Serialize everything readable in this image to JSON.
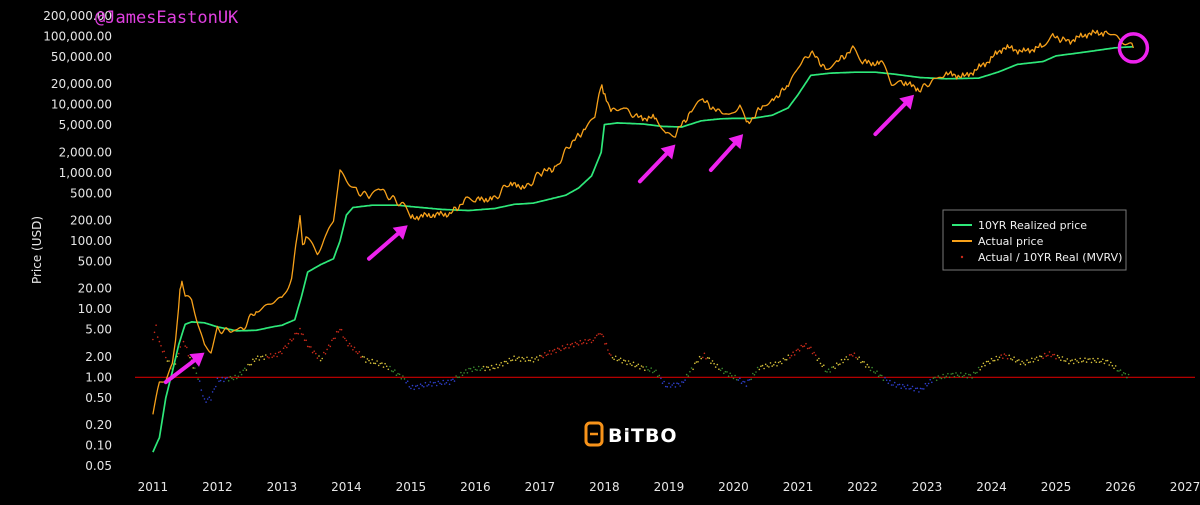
{
  "handle": "@JamesEastonUK",
  "logo": {
    "text": "BiTBO",
    "color": "#f7931a"
  },
  "chart_data": {
    "type": "line",
    "title": "",
    "xlabel": "",
    "ylabel": "Price (USD)",
    "yscale": "log",
    "ylim": [
      0.05,
      200000
    ],
    "xlim": [
      2010.8,
      2027
    ],
    "xticks": [
      "2011",
      "2012",
      "2013",
      "2014",
      "2015",
      "2016",
      "2017",
      "2018",
      "2019",
      "2020",
      "2021",
      "2022",
      "2023",
      "2024",
      "2025",
      "2026",
      "2027"
    ],
    "yticks": [
      {
        "value": 200000,
        "label": "200,000.00"
      },
      {
        "value": 100000,
        "label": "100,000.00"
      },
      {
        "value": 50000,
        "label": "50,000.00"
      },
      {
        "value": 20000,
        "label": "20,000.00"
      },
      {
        "value": 10000,
        "label": "10,000.00"
      },
      {
        "value": 5000,
        "label": "5,000.00"
      },
      {
        "value": 2000,
        "label": "2,000.00"
      },
      {
        "value": 1000,
        "label": "1,000.00"
      },
      {
        "value": 500,
        "label": "500.00"
      },
      {
        "value": 200,
        "label": "200.00"
      },
      {
        "value": 100,
        "label": "100.00"
      },
      {
        "value": 50,
        "label": "50.00"
      },
      {
        "value": 20,
        "label": "20.00"
      },
      {
        "value": 10,
        "label": "10.00"
      },
      {
        "value": 5,
        "label": "5.00"
      },
      {
        "value": 2,
        "label": "2.00"
      },
      {
        "value": 1,
        "label": "1.00"
      },
      {
        "value": 0.5,
        "label": "0.50"
      },
      {
        "value": 0.2,
        "label": "0.20"
      },
      {
        "value": 0.1,
        "label": "0.10"
      },
      {
        "value": 0.05,
        "label": "0.05"
      }
    ],
    "grid": false,
    "legend_position": "right",
    "reference_line": {
      "value": 1.0,
      "color": "#cc0000"
    },
    "series": [
      {
        "name": "10YR Realized price",
        "color": "#2ee87a",
        "points": [
          [
            2011.0,
            0.08
          ],
          [
            2011.1,
            0.13
          ],
          [
            2011.2,
            0.5
          ],
          [
            2011.3,
            1.2
          ],
          [
            2011.4,
            3.0
          ],
          [
            2011.5,
            6.0
          ],
          [
            2011.6,
            6.5
          ],
          [
            2011.8,
            6.3
          ],
          [
            2012.0,
            5.5
          ],
          [
            2012.3,
            4.8
          ],
          [
            2012.6,
            4.9
          ],
          [
            2012.9,
            5.6
          ],
          [
            2013.0,
            5.8
          ],
          [
            2013.2,
            7.0
          ],
          [
            2013.3,
            15
          ],
          [
            2013.4,
            35
          ],
          [
            2013.6,
            45
          ],
          [
            2013.8,
            55
          ],
          [
            2013.9,
            100
          ],
          [
            2014.0,
            240
          ],
          [
            2014.1,
            310
          ],
          [
            2014.4,
            335
          ],
          [
            2014.8,
            335
          ],
          [
            2015.0,
            320
          ],
          [
            2015.5,
            290
          ],
          [
            2015.9,
            280
          ],
          [
            2016.3,
            300
          ],
          [
            2016.6,
            345
          ],
          [
            2016.9,
            360
          ],
          [
            2017.1,
            400
          ],
          [
            2017.4,
            470
          ],
          [
            2017.6,
            600
          ],
          [
            2017.8,
            900
          ],
          [
            2017.95,
            2000
          ],
          [
            2018.0,
            5100
          ],
          [
            2018.2,
            5400
          ],
          [
            2018.6,
            5200
          ],
          [
            2018.9,
            4800
          ],
          [
            2019.2,
            4700
          ],
          [
            2019.5,
            5800
          ],
          [
            2019.8,
            6200
          ],
          [
            2020.0,
            6300
          ],
          [
            2020.3,
            6300
          ],
          [
            2020.6,
            7000
          ],
          [
            2020.85,
            9000
          ],
          [
            2021.0,
            14000
          ],
          [
            2021.2,
            27000
          ],
          [
            2021.5,
            29000
          ],
          [
            2021.9,
            30000
          ],
          [
            2022.2,
            30000
          ],
          [
            2022.5,
            28000
          ],
          [
            2022.9,
            25000
          ],
          [
            2023.3,
            24000
          ],
          [
            2023.8,
            24500
          ],
          [
            2024.1,
            30000
          ],
          [
            2024.4,
            39000
          ],
          [
            2024.8,
            43000
          ],
          [
            2025.0,
            52000
          ],
          [
            2025.5,
            60000
          ],
          [
            2025.9,
            68000
          ],
          [
            2026.2,
            71000
          ]
        ]
      },
      {
        "name": "Actual price",
        "color": "#f7a11a",
        "points": [
          [
            2011.0,
            0.3
          ],
          [
            2011.1,
            0.8
          ],
          [
            2011.2,
            0.9
          ],
          [
            2011.3,
            1.5
          ],
          [
            2011.35,
            3.5
          ],
          [
            2011.42,
            18
          ],
          [
            2011.45,
            28
          ],
          [
            2011.5,
            15
          ],
          [
            2011.6,
            13
          ],
          [
            2011.7,
            6
          ],
          [
            2011.8,
            3
          ],
          [
            2011.9,
            2.5
          ],
          [
            2012.0,
            5
          ],
          [
            2012.2,
            4.8
          ],
          [
            2012.4,
            5.2
          ],
          [
            2012.6,
            10
          ],
          [
            2012.75,
            11
          ],
          [
            2012.9,
            13
          ],
          [
            2013.0,
            14
          ],
          [
            2013.15,
            30
          ],
          [
            2013.28,
            230
          ],
          [
            2013.32,
            90
          ],
          [
            2013.4,
            110
          ],
          [
            2013.55,
            70
          ],
          [
            2013.7,
            120
          ],
          [
            2013.8,
            200
          ],
          [
            2013.9,
            1100
          ],
          [
            2014.0,
            800
          ],
          [
            2014.15,
            550
          ],
          [
            2014.35,
            450
          ],
          [
            2014.5,
            600
          ],
          [
            2014.7,
            420
          ],
          [
            2014.9,
            330
          ],
          [
            2015.0,
            220
          ],
          [
            2015.3,
            240
          ],
          [
            2015.6,
            250
          ],
          [
            2015.85,
            390
          ],
          [
            2016.0,
            400
          ],
          [
            2016.3,
            420
          ],
          [
            2016.5,
            680
          ],
          [
            2016.8,
            620
          ],
          [
            2017.0,
            1000
          ],
          [
            2017.25,
            1200
          ],
          [
            2017.45,
            2500
          ],
          [
            2017.7,
            4400
          ],
          [
            2017.85,
            7000
          ],
          [
            2017.96,
            19000
          ],
          [
            2018.1,
            8000
          ],
          [
            2018.3,
            9000
          ],
          [
            2018.5,
            6500
          ],
          [
            2018.8,
            6300
          ],
          [
            2018.95,
            3500
          ],
          [
            2019.1,
            3800
          ],
          [
            2019.35,
            8000
          ],
          [
            2019.5,
            12000
          ],
          [
            2019.75,
            8000
          ],
          [
            2019.95,
            7200
          ],
          [
            2020.1,
            10000
          ],
          [
            2020.2,
            5000
          ],
          [
            2020.45,
            9500
          ],
          [
            2020.6,
            11500
          ],
          [
            2020.85,
            19000
          ],
          [
            2021.0,
            35000
          ],
          [
            2021.2,
            60000
          ],
          [
            2021.45,
            32000
          ],
          [
            2021.6,
            42000
          ],
          [
            2021.85,
            65000
          ],
          [
            2022.0,
            42000
          ],
          [
            2022.3,
            40000
          ],
          [
            2022.45,
            21000
          ],
          [
            2022.6,
            22000
          ],
          [
            2022.9,
            16500
          ],
          [
            2023.1,
            23000
          ],
          [
            2023.3,
            28000
          ],
          [
            2023.6,
            26000
          ],
          [
            2023.9,
            40000
          ],
          [
            2024.2,
            70000
          ],
          [
            2024.5,
            60000
          ],
          [
            2024.8,
            72000
          ],
          [
            2024.95,
            100000
          ],
          [
            2025.2,
            85000
          ],
          [
            2025.5,
            110000
          ],
          [
            2025.8,
            115000
          ],
          [
            2025.95,
            100000
          ],
          [
            2026.1,
            78000
          ],
          [
            2026.2,
            68000
          ]
        ]
      },
      {
        "name": "Actual / 10YR Real (MVRV)",
        "color": "#cc2a1a",
        "marker": "dot",
        "points": [
          [
            2011.0,
            3.8
          ],
          [
            2011.05,
            5.5
          ],
          [
            2011.1,
            3.2
          ],
          [
            2011.2,
            2.0
          ],
          [
            2011.3,
            1.3
          ],
          [
            2011.4,
            2.2
          ],
          [
            2011.45,
            4.0
          ],
          [
            2011.55,
            2.2
          ],
          [
            2011.7,
            1.0
          ],
          [
            2011.8,
            0.45
          ],
          [
            2011.9,
            0.5
          ],
          [
            2012.0,
            0.9
          ],
          [
            2012.3,
            1.0
          ],
          [
            2012.6,
            1.9
          ],
          [
            2012.9,
            2.1
          ],
          [
            2013.0,
            2.4
          ],
          [
            2013.28,
            5.0
          ],
          [
            2013.4,
            3.0
          ],
          [
            2013.6,
            1.8
          ],
          [
            2013.9,
            5.2
          ],
          [
            2014.0,
            3.3
          ],
          [
            2014.3,
            1.8
          ],
          [
            2014.6,
            1.5
          ],
          [
            2014.9,
            0.95
          ],
          [
            2015.0,
            0.7
          ],
          [
            2015.3,
            0.8
          ],
          [
            2015.6,
            0.85
          ],
          [
            2015.9,
            1.3
          ],
          [
            2016.3,
            1.4
          ],
          [
            2016.6,
            1.9
          ],
          [
            2016.9,
            1.8
          ],
          [
            2017.2,
            2.4
          ],
          [
            2017.5,
            3.0
          ],
          [
            2017.8,
            3.5
          ],
          [
            2017.96,
            4.3
          ],
          [
            2018.1,
            2.0
          ],
          [
            2018.4,
            1.6
          ],
          [
            2018.8,
            1.2
          ],
          [
            2018.95,
            0.75
          ],
          [
            2019.2,
            0.8
          ],
          [
            2019.45,
            1.8
          ],
          [
            2019.55,
            2.1
          ],
          [
            2019.8,
            1.3
          ],
          [
            2020.2,
            0.8
          ],
          [
            2020.4,
            1.4
          ],
          [
            2020.7,
            1.6
          ],
          [
            2020.9,
            2.1
          ],
          [
            2021.1,
            3.0
          ],
          [
            2021.2,
            2.6
          ],
          [
            2021.45,
            1.2
          ],
          [
            2021.85,
            2.2
          ],
          [
            2022.1,
            1.4
          ],
          [
            2022.45,
            0.8
          ],
          [
            2022.9,
            0.65
          ],
          [
            2023.1,
            0.95
          ],
          [
            2023.4,
            1.1
          ],
          [
            2023.7,
            1.05
          ],
          [
            2023.9,
            1.6
          ],
          [
            2024.2,
            2.1
          ],
          [
            2024.5,
            1.6
          ],
          [
            2024.9,
            2.2
          ],
          [
            2025.2,
            1.7
          ],
          [
            2025.5,
            1.8
          ],
          [
            2025.8,
            1.7
          ],
          [
            2026.0,
            1.2
          ],
          [
            2026.15,
            1.0
          ]
        ]
      }
    ],
    "annotations": [
      {
        "type": "arrow",
        "color": "#ee22ee",
        "from": [
          2011.2,
          0.85
        ],
        "to": [
          2011.8,
          2.3
        ]
      },
      {
        "type": "arrow",
        "color": "#ee22ee",
        "from": [
          2014.35,
          55
        ],
        "to": [
          2014.95,
          170
        ]
      },
      {
        "type": "arrow",
        "color": "#ee22ee",
        "from": [
          2018.55,
          750
        ],
        "to": [
          2019.1,
          2600
        ]
      },
      {
        "type": "arrow",
        "color": "#ee22ee",
        "from": [
          2019.65,
          1100
        ],
        "to": [
          2020.15,
          3700
        ]
      },
      {
        "type": "arrow",
        "color": "#ee22ee",
        "from": [
          2022.2,
          3700
        ],
        "to": [
          2022.8,
          14000
        ]
      },
      {
        "type": "circle",
        "color": "#ee22ee",
        "center": [
          2026.2,
          68000
        ]
      }
    ]
  }
}
